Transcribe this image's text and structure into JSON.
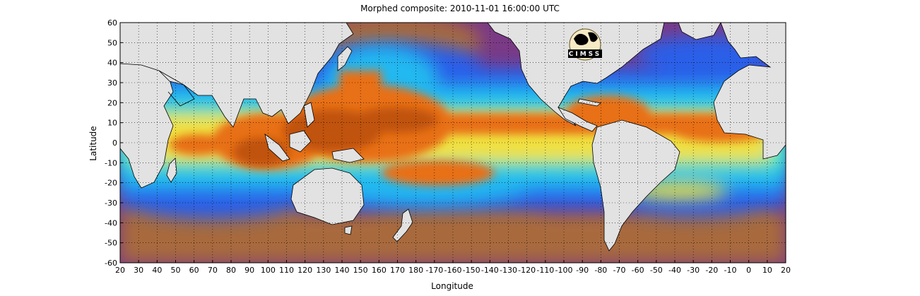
{
  "title": "Morphed composite: 2010-11-01 16:00:00 UTC",
  "xlabel": "Longitude",
  "ylabel": "Latitude",
  "logo_text": "CIMSS",
  "x_tick_labels": [
    "20",
    "30",
    "40",
    "50",
    "60",
    "70",
    "80",
    "90",
    "100",
    "110",
    "120",
    "130",
    "140",
    "150",
    "160",
    "170",
    "180",
    "-170",
    "-160",
    "-150",
    "-140",
    "-130",
    "-120",
    "-110",
    "-100",
    "-90",
    "-80",
    "-70",
    "-60",
    "-50",
    "-40",
    "-30",
    "-20",
    "-10",
    "0",
    "10",
    "20"
  ],
  "y_tick_labels": [
    "60",
    "50",
    "40",
    "30",
    "20",
    "10",
    "0",
    "-10",
    "-20",
    "-30",
    "-40",
    "-50",
    "-60"
  ],
  "map": {
    "lon_range": [
      20,
      380
    ],
    "lat_range": [
      -60,
      60
    ],
    "grid": "dotted",
    "colors": {
      "land": "#e2e2e2",
      "dry": "#7a3a86",
      "very_dry": "#a86a3e",
      "low": "#2a5ee8",
      "mid": "#22b8f0",
      "mid_high": "#3ce8c8",
      "high": "#f0e040",
      "very_high": "#e87018",
      "max": "#c05208"
    }
  }
}
